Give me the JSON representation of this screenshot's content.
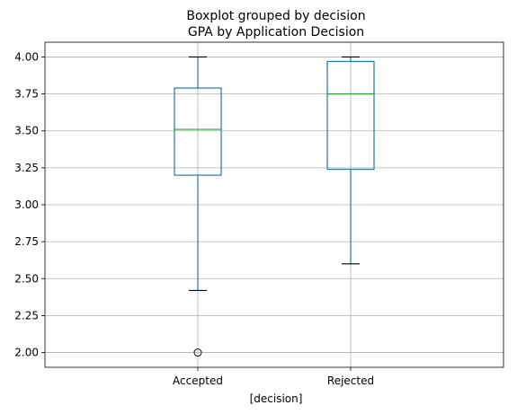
{
  "chart_data": {
    "type": "box",
    "title": "Boxplot grouped by decision",
    "subtitle": "GPA by Application Decision",
    "xlabel": "[decision]",
    "ylabel": "",
    "ylim": [
      1.9,
      4.1
    ],
    "yticks": [
      "2.00",
      "2.25",
      "2.50",
      "2.75",
      "3.00",
      "3.25",
      "3.50",
      "3.75",
      "4.00"
    ],
    "ytick_values": [
      2.0,
      2.25,
      2.5,
      2.75,
      3.0,
      3.25,
      3.5,
      3.75,
      4.0
    ],
    "grid": true,
    "categories": [
      "Accepted",
      "Rejected"
    ],
    "boxes": [
      {
        "category": "Accepted",
        "whisker_low": 2.42,
        "q1": 3.2,
        "median": 3.51,
        "q3": 3.79,
        "whisker_high": 4.0,
        "outliers": [
          2.0
        ]
      },
      {
        "category": "Rejected",
        "whisker_low": 2.6,
        "q1": 3.24,
        "median": 3.75,
        "q3": 3.97,
        "whisker_high": 4.0,
        "outliers": []
      }
    ],
    "colors": {
      "box": "#1f77b4",
      "median": "#2ca02c",
      "whisker_cap": "#000000",
      "grid": "#b0b0b0",
      "outlier": "#000000"
    }
  }
}
